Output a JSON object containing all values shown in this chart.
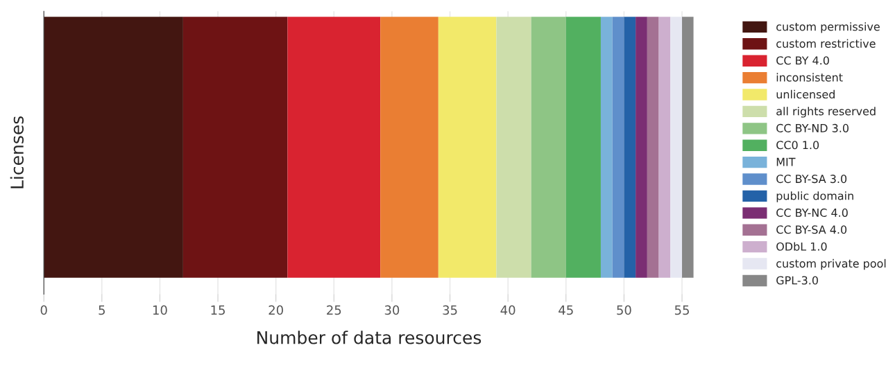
{
  "chart_data": {
    "type": "bar",
    "orientation": "horizontal",
    "stacked": true,
    "xlabel": "Number of data resources",
    "ylabel": "Licenses",
    "categories": [
      null
    ],
    "series": [
      {
        "name": "custom permissive",
        "color": "#431611",
        "values": [
          12
        ]
      },
      {
        "name": "custom restrictive",
        "color": "#6e1314",
        "values": [
          9
        ]
      },
      {
        "name": "CC BY 4.0",
        "color": "#d92330",
        "values": [
          8
        ]
      },
      {
        "name": "inconsistent",
        "color": "#ea7e33",
        "values": [
          5
        ]
      },
      {
        "name": "unlicensed",
        "color": "#f2e96a",
        "values": [
          5
        ]
      },
      {
        "name": "all rights reserved",
        "color": "#cddeab",
        "values": [
          3
        ]
      },
      {
        "name": "CC BY-ND 3.0",
        "color": "#8ec585",
        "values": [
          3
        ]
      },
      {
        "name": "CC0 1.0",
        "color": "#52b060",
        "values": [
          3
        ]
      },
      {
        "name": "MIT",
        "color": "#79b2da",
        "values": [
          1
        ]
      },
      {
        "name": "CC BY-SA 3.0",
        "color": "#5f8fcb",
        "values": [
          1
        ]
      },
      {
        "name": "public domain",
        "color": "#2462a8",
        "values": [
          1
        ]
      },
      {
        "name": "CC BY-NC 4.0",
        "color": "#7b2e73",
        "values": [
          1
        ]
      },
      {
        "name": "CC BY-SA 4.0",
        "color": "#a47193",
        "values": [
          1
        ]
      },
      {
        "name": "ODbL 1.0",
        "color": "#cdafce",
        "values": [
          1
        ]
      },
      {
        "name": "custom private pool",
        "color": "#e6e7f2",
        "values": [
          1
        ]
      },
      {
        "name": "GPL-3.0",
        "color": "#878787",
        "values": [
          1
        ]
      }
    ],
    "xlim": [
      0,
      56
    ],
    "xticks": [
      0,
      5,
      10,
      15,
      20,
      25,
      30,
      35,
      40,
      45,
      50,
      55
    ],
    "grid": "x",
    "legend": "right"
  }
}
